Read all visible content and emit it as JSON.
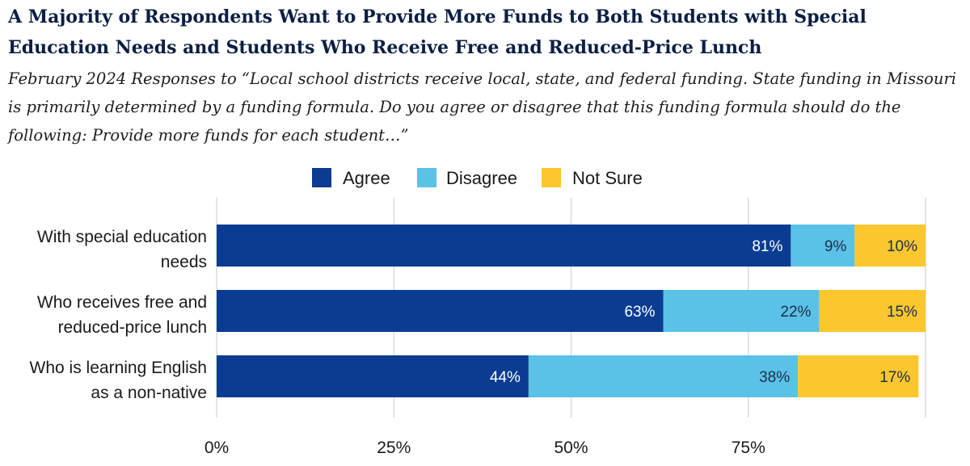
{
  "title": "A Majority of Respondents Want to Provide More Funds to Both Students with Special Education Needs and Students Who Receive Free and Reduced-Price Lunch",
  "subtitle": "February 2024 Responses to “Local school districts receive local, state, and federal funding. State funding in Missouri is primarily determined by a funding formula. Do you agree or disagree that this funding formula should do the following: Provide more funds for each student…”",
  "chart_data": {
    "type": "bar",
    "orientation": "horizontal",
    "stacked": true,
    "categories": [
      [
        "With special education",
        "needs"
      ],
      [
        "Who receives free and",
        "reduced-price lunch"
      ],
      [
        "Who is learning English",
        "as a non-native"
      ]
    ],
    "series": [
      {
        "name": "Agree",
        "color": "#0a3d91",
        "label_color": "#ffffff",
        "values": [
          81,
          63,
          44
        ]
      },
      {
        "name": "Disagree",
        "color": "#5bc2e7",
        "label_color": "#1e2d4a",
        "values": [
          9,
          22,
          38
        ]
      },
      {
        "name": "Not Sure",
        "color": "#fcc72e",
        "label_color": "#1e2d4a",
        "values": [
          10,
          15,
          17
        ]
      }
    ],
    "value_suffix": "%",
    "xlim": [
      0,
      100
    ],
    "xticks": [
      0,
      25,
      50,
      75
    ],
    "xtick_labels": [
      "0%",
      "25%",
      "50%",
      "75%"
    ],
    "grid": true,
    "legend": "top-center"
  }
}
